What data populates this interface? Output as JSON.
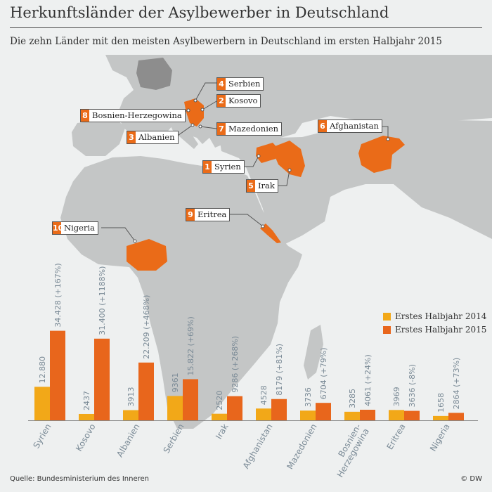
{
  "title": "Herkunftsländer der Asylbewerber in Deutschland",
  "subtitle": "Die zehn Länder mit den meisten Asylbewerbern in Deutschland im ersten Halbjahr 2015",
  "source": "Quelle: Bundesministerium des Inneren",
  "credit": "© DW",
  "colors": {
    "series_2014": "#f2a818",
    "series_2015": "#e8661c",
    "map_land": "#c4c6c6",
    "map_sea": "#eef0f0",
    "germany": "#8d8d8d",
    "highlight": "#ea6b18"
  },
  "map_callouts": [
    {
      "rank": "4",
      "name": "Serbien"
    },
    {
      "rank": "2",
      "name": "Kosovo"
    },
    {
      "rank": "8",
      "name": "Bosnien-Herzegowina"
    },
    {
      "rank": "7",
      "name": "Mazedonien"
    },
    {
      "rank": "3",
      "name": "Albanien"
    },
    {
      "rank": "6",
      "name": "Afghanistan"
    },
    {
      "rank": "1",
      "name": "Syrien"
    },
    {
      "rank": "5",
      "name": "Irak"
    },
    {
      "rank": "9",
      "name": "Eritrea"
    },
    {
      "rank": "10",
      "name": "Nigeria"
    }
  ],
  "chart_data": {
    "type": "bar",
    "categories": [
      "Syrien",
      "Kosovo",
      "Albanien",
      "Serbien",
      "Irak",
      "Afghanistan",
      "Mazedonien",
      "Bosnien-Herzegowina",
      "Eritrea",
      "Nigeria"
    ],
    "category_labels": [
      [
        "Syrien"
      ],
      [
        "Kosovo"
      ],
      [
        "Albanien"
      ],
      [
        "Serbien"
      ],
      [
        "Irak"
      ],
      [
        "Afghanistan"
      ],
      [
        "Mazedonien"
      ],
      [
        "Bosnien-",
        "Herzegowina"
      ],
      [
        "Eritrea"
      ],
      [
        "Nigeria"
      ]
    ],
    "series": [
      {
        "name": "Erstes Halbjahr 2014",
        "values": [
          12880,
          2437,
          3913,
          9361,
          2520,
          4528,
          3736,
          3285,
          3969,
          1658
        ],
        "labels": [
          "12.880",
          "2437",
          "3913",
          "9361",
          "2520",
          "4528",
          "3736",
          "3285",
          "3969",
          "1658"
        ]
      },
      {
        "name": "Erstes Halbjahr 2015",
        "values": [
          34428,
          31400,
          22209,
          15822,
          9286,
          8179,
          6704,
          4061,
          3636,
          2864
        ],
        "labels": [
          "34.428 (+167%)",
          "31.400 (+1188%)",
          "22.209 (+468%)",
          "15.822 (+69%)",
          "9286 (+268%)",
          "8179 (+81%)",
          "6704 (+79%)",
          "4061 (+24%)",
          "3636 (-8%)",
          "2864 (+73%)"
        ]
      }
    ],
    "ylim": [
      0,
      40000
    ],
    "legend": "right"
  }
}
